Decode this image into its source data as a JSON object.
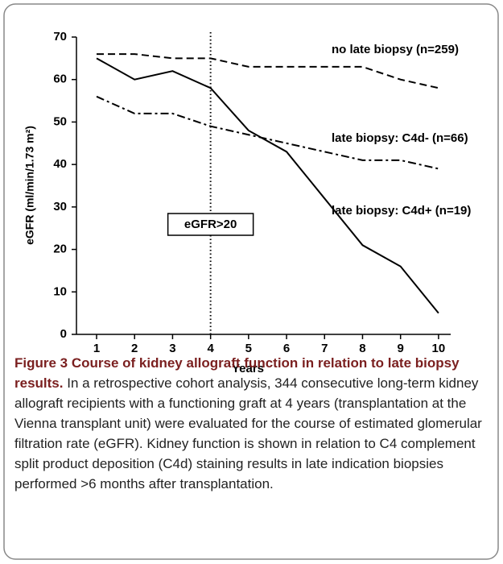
{
  "chart_data": {
    "type": "line",
    "x_label": "Years",
    "y_label": "eGFR (ml/min/1.73 m²)",
    "x": [
      1,
      2,
      3,
      4,
      5,
      6,
      7,
      8,
      9,
      10
    ],
    "series": [
      {
        "name": "no late biopsy (n=259)",
        "color": "#000000",
        "line_style": "dashed",
        "values": [
          66,
          66,
          65,
          65,
          63,
          63,
          63,
          63,
          60,
          58
        ]
      },
      {
        "name": "late biopsy: C4d- (n=66)",
        "color": "#000000",
        "line_style": "dashdot",
        "values": [
          56,
          52,
          52,
          49,
          47,
          45,
          43,
          41,
          41,
          39
        ]
      },
      {
        "name": "late biopsy: C4d+ (n=19)",
        "color": "#000000",
        "line_style": "solid",
        "values": [
          65,
          60,
          62,
          58,
          48,
          43,
          32,
          21,
          16,
          5
        ]
      }
    ],
    "reference_line": {
      "x": 4,
      "label": "eGFR>20"
    },
    "xlim": [
      0.47,
      10.32
    ],
    "ylim": [
      0,
      70
    ],
    "xticks": [
      1,
      2,
      3,
      4,
      5,
      6,
      7,
      8,
      9,
      10
    ],
    "yticks": [
      0,
      10,
      20,
      30,
      40,
      50,
      60,
      70
    ]
  },
  "caption": {
    "title": "Figure 3 Course of kidney allograft function in relation to late biopsy results.",
    "text": "In a retrospective cohort analysis, 344 consecutive long-term kidney allograft recipients with a functioning graft at 4 years (transplantation at the Vienna transplant unit) were evaluated for the course of estimated glomerular filtration rate (eGFR). Kidney function is shown in relation to C4 complement split product deposition (C4d) staining results in late indication biopsies performed >6 months after transplantation."
  }
}
